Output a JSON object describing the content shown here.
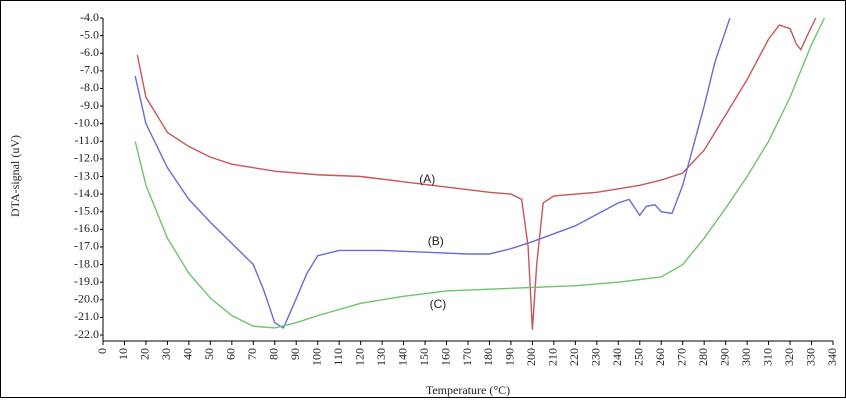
{
  "chart_data": {
    "type": "line",
    "xlabel": "Temperature (°C)",
    "ylabel": "DTA-signal (uV)",
    "xlim": [
      0,
      340
    ],
    "xticks": [
      0,
      10,
      20,
      30,
      40,
      50,
      60,
      70,
      80,
      90,
      100,
      110,
      120,
      130,
      140,
      150,
      160,
      170,
      180,
      190,
      200,
      210,
      220,
      230,
      240,
      250,
      260,
      270,
      280,
      290,
      300,
      310,
      320,
      330,
      340
    ],
    "ylim": [
      -22,
      -4
    ],
    "yticks": [
      {
        "value": -22,
        "label": "-22.0"
      },
      {
        "value": -21,
        "label": "-21.0"
      },
      {
        "value": -20,
        "label": "-20.0"
      },
      {
        "value": -19,
        "label": "-19.0"
      },
      {
        "value": -18,
        "label": "-18.0"
      },
      {
        "value": -17,
        "label": "-17.0"
      },
      {
        "value": -16,
        "label": "-16.0"
      },
      {
        "value": -15,
        "label": "-15.0"
      },
      {
        "value": -14,
        "label": "-14.0"
      },
      {
        "value": -13,
        "label": "-13.0"
      },
      {
        "value": -12,
        "label": "-12.0"
      },
      {
        "value": -11,
        "label": "-11.0"
      },
      {
        "value": -10,
        "label": "-10.0"
      },
      {
        "value": -9,
        "label": "-9.0"
      },
      {
        "value": -8,
        "label": "-8.0"
      },
      {
        "value": -7,
        "label": "-7.0"
      },
      {
        "value": -6,
        "label": "-6.0"
      },
      {
        "value": -5,
        "label": "-5.0"
      },
      {
        "value": -4,
        "label": "-4.0"
      }
    ],
    "series": [
      {
        "name": "(A)",
        "color": "#c8555a",
        "x": [
          16,
          20,
          30,
          40,
          50,
          60,
          70,
          80,
          100,
          120,
          140,
          160,
          180,
          190,
          195,
          198,
          200,
          202,
          205,
          210,
          230,
          250,
          260,
          270,
          280,
          290,
          300,
          310,
          315,
          320,
          323,
          325,
          328,
          332
        ],
        "values": [
          -6.1,
          -8.5,
          -10.5,
          -11.3,
          -11.9,
          -12.3,
          -12.5,
          -12.7,
          -12.9,
          -13.0,
          -13.3,
          -13.6,
          -13.9,
          -14.0,
          -14.3,
          -17,
          -21.7,
          -18,
          -14.5,
          -14.1,
          -13.9,
          -13.5,
          -13.2,
          -12.8,
          -11.5,
          -9.5,
          -7.5,
          -5.2,
          -4.4,
          -4.6,
          -5.5,
          -5.8,
          -5.0,
          -4.0
        ]
      },
      {
        "name": "(B)",
        "color": "#6b6bd6",
        "x": [
          15,
          20,
          30,
          40,
          50,
          60,
          70,
          75,
          80,
          84,
          88,
          95,
          100,
          110,
          130,
          150,
          170,
          180,
          190,
          200,
          220,
          240,
          245,
          250,
          253,
          257,
          260,
          265,
          270,
          280,
          285,
          292
        ],
        "values": [
          -7.3,
          -10,
          -12.5,
          -14.3,
          -15.6,
          -16.8,
          -18,
          -19.5,
          -21.3,
          -21.6,
          -20.5,
          -18.5,
          -17.5,
          -17.2,
          -17.2,
          -17.3,
          -17.4,
          -17.4,
          -17.1,
          -16.7,
          -15.8,
          -14.5,
          -14.3,
          -15.2,
          -14.7,
          -14.6,
          -15.0,
          -15.1,
          -13.5,
          -9,
          -6.5,
          -4.0
        ]
      },
      {
        "name": "(C)",
        "color": "#6cc46c",
        "x": [
          15,
          20,
          30,
          40,
          50,
          60,
          70,
          80,
          90,
          100,
          120,
          140,
          160,
          180,
          200,
          220,
          240,
          260,
          270,
          280,
          290,
          300,
          310,
          320,
          330,
          336
        ],
        "values": [
          -11,
          -13.5,
          -16.5,
          -18.5,
          -19.9,
          -20.9,
          -21.5,
          -21.6,
          -21.3,
          -20.9,
          -20.2,
          -19.8,
          -19.5,
          -19.4,
          -19.3,
          -19.2,
          -19.0,
          -18.7,
          -18.0,
          -16.5,
          -14.8,
          -13.0,
          -11.0,
          -8.5,
          -5.5,
          -4.0
        ]
      }
    ]
  }
}
